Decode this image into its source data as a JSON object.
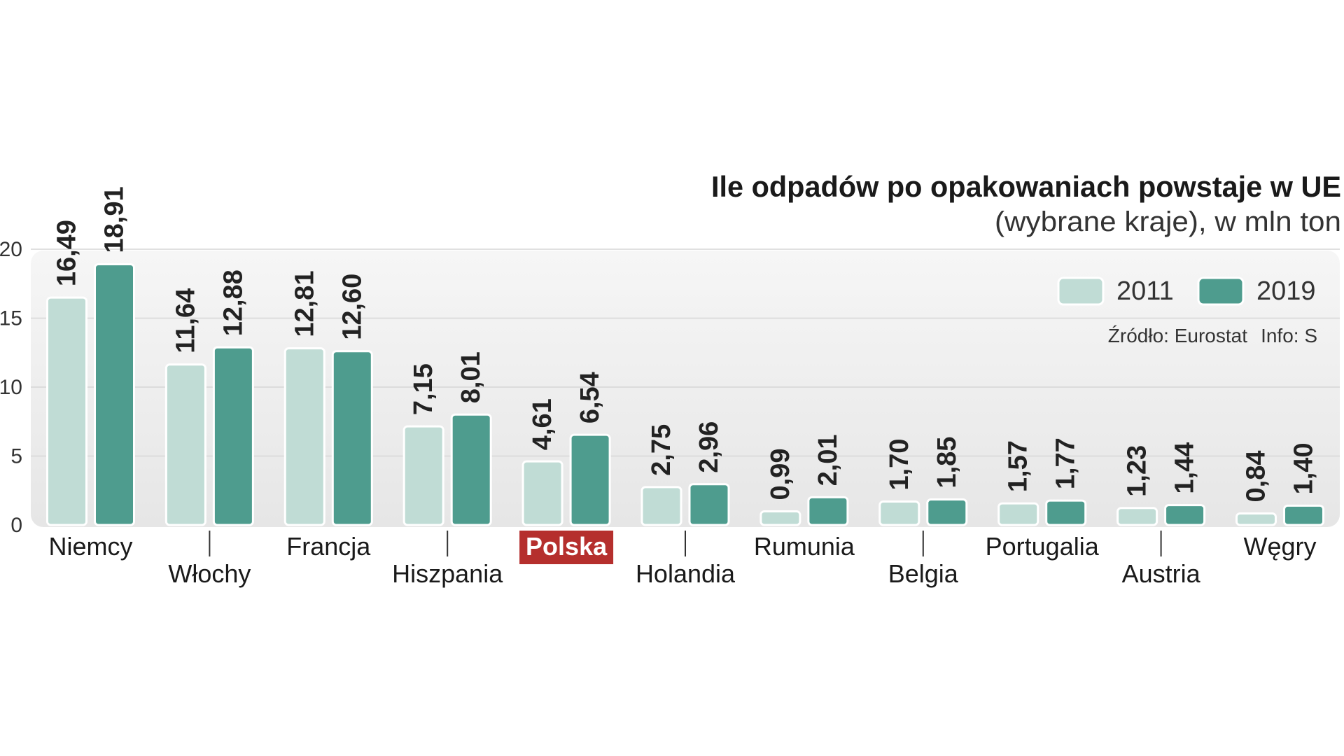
{
  "chart_data": {
    "type": "bar",
    "title": "Ile odpadów po opakowaniach powstaje w UE",
    "subtitle": "(wybrane kraje), w mln ton",
    "source": "Źródło: Eurostat",
    "info": "Info: S",
    "categories": [
      "Niemcy",
      "Włochy",
      "Francja",
      "Hiszpania",
      "Polska",
      "Holandia",
      "Rumunia",
      "Belgia",
      "Portugalia",
      "Austria",
      "Węgry"
    ],
    "highlight_category": "Polska",
    "series": [
      {
        "name": "2011",
        "values": [
          16.49,
          11.64,
          12.81,
          7.15,
          4.61,
          2.75,
          0.99,
          1.7,
          1.57,
          1.23,
          0.84
        ],
        "labels": [
          "16,49",
          "11,64",
          "12,81",
          "7,15",
          "4,61",
          "2,75",
          "0,99",
          "1,70",
          "1,57",
          "1,23",
          "0,84"
        ]
      },
      {
        "name": "2019",
        "values": [
          18.91,
          12.88,
          12.6,
          8.01,
          6.54,
          2.96,
          2.01,
          1.85,
          1.77,
          1.44,
          1.4
        ],
        "labels": [
          "18,91",
          "12,88",
          "12,60",
          "8,01",
          "6,54",
          "2,96",
          "2,01",
          "1,85",
          "1,77",
          "1,44",
          "1,40"
        ]
      }
    ],
    "y_ticks": [
      "0",
      "5",
      "10",
      "15",
      "20"
    ],
    "ylim": [
      0,
      20
    ],
    "grid": true,
    "legend_position": "top-right",
    "colors": {
      "series_2011": "#c0dcd5",
      "series_2019": "#4e9c8e",
      "highlight_bg": "#b52f2d",
      "panel_bg": "#ededed",
      "text": "#1a1a1a",
      "label_text": "#222222"
    }
  }
}
